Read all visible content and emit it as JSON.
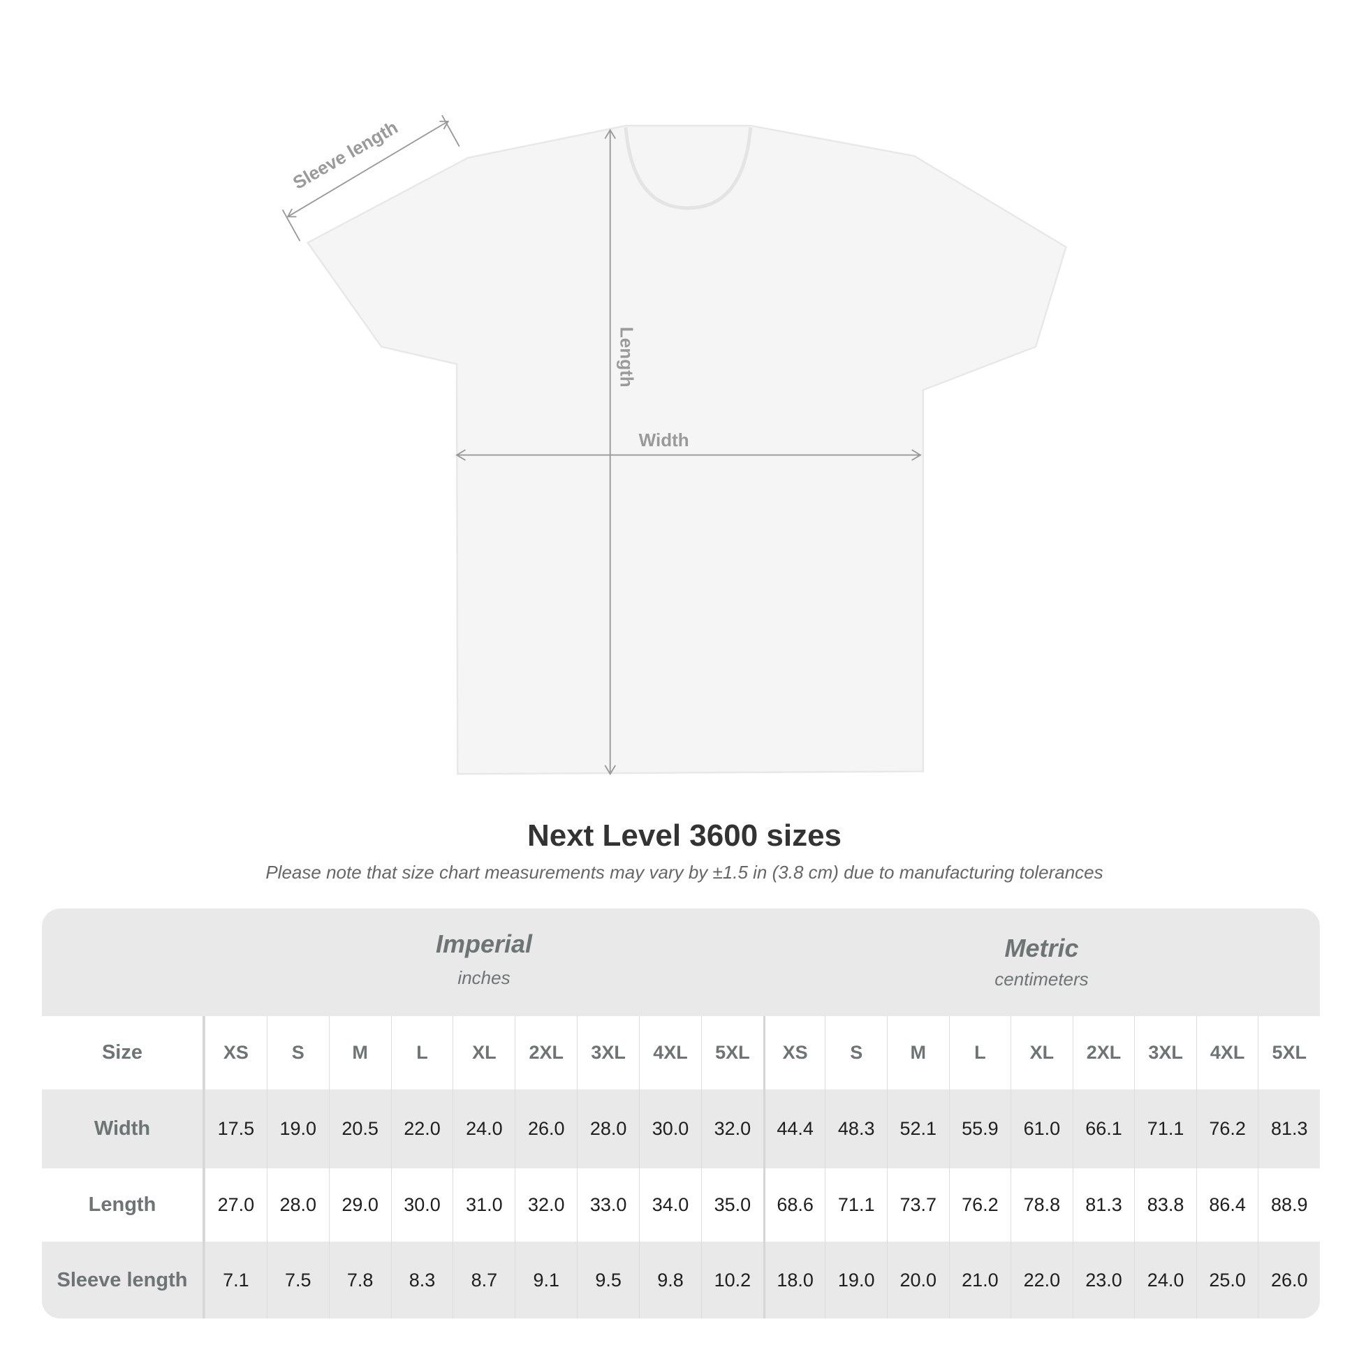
{
  "diagram": {
    "labels": {
      "sleeve": "Sleeve length",
      "length": "Length",
      "width": "Width"
    }
  },
  "title": "Next Level 3600 sizes",
  "note": "Please note that size chart measurements may vary by ±1.5 in (3.8 cm) due to manufacturing tolerances",
  "table": {
    "imperial": {
      "label": "Imperial",
      "unit": "inches"
    },
    "metric": {
      "label": "Metric",
      "unit": "centimeters"
    },
    "size_label": "Size",
    "sizes": [
      "XS",
      "S",
      "M",
      "L",
      "XL",
      "2XL",
      "3XL",
      "4XL",
      "5XL"
    ],
    "rows": [
      {
        "label": "Width",
        "imperial": [
          "17.5",
          "19.0",
          "20.5",
          "22.0",
          "24.0",
          "26.0",
          "28.0",
          "30.0",
          "32.0"
        ],
        "metric": [
          "44.4",
          "48.3",
          "52.1",
          "55.9",
          "61.0",
          "66.1",
          "71.1",
          "76.2",
          "81.3"
        ]
      },
      {
        "label": "Length",
        "imperial": [
          "27.0",
          "28.0",
          "29.0",
          "30.0",
          "31.0",
          "32.0",
          "33.0",
          "34.0",
          "35.0"
        ],
        "metric": [
          "68.6",
          "71.1",
          "73.7",
          "76.2",
          "78.8",
          "81.3",
          "83.8",
          "86.4",
          "88.9"
        ]
      },
      {
        "label": "Sleeve length",
        "imperial": [
          "7.1",
          "7.5",
          "7.8",
          "8.3",
          "8.7",
          "9.1",
          "9.5",
          "9.8",
          "10.2"
        ],
        "metric": [
          "18.0",
          "19.0",
          "20.0",
          "21.0",
          "22.0",
          "23.0",
          "24.0",
          "25.0",
          "26.0"
        ]
      }
    ]
  }
}
